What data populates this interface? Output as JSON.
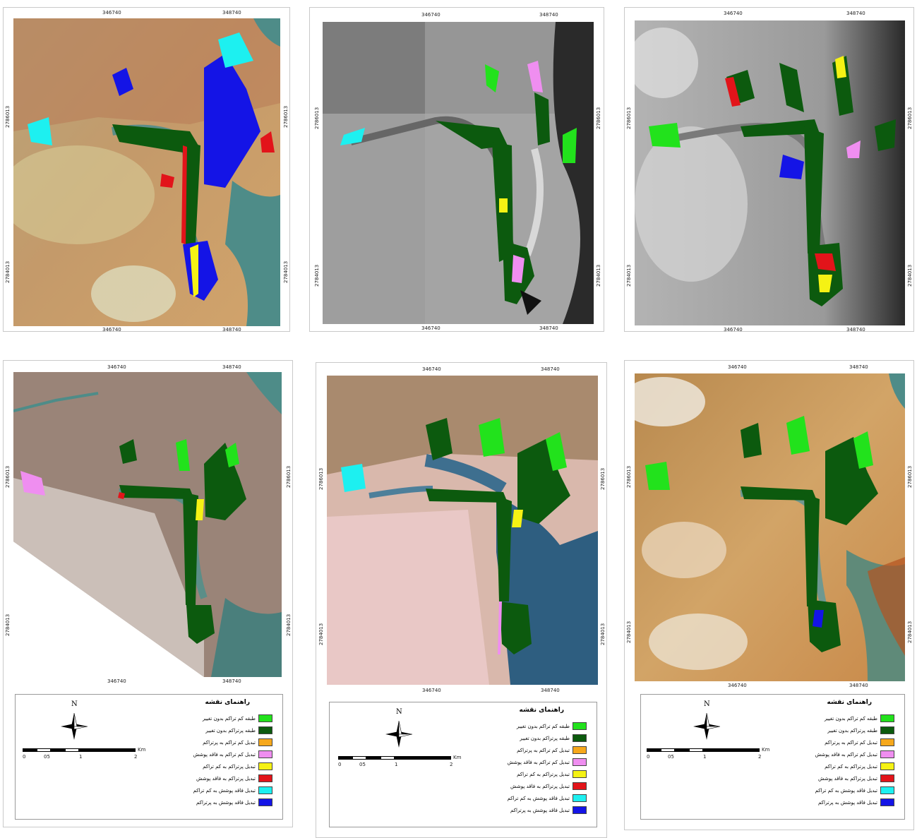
{
  "ticks": {
    "top_left": "346740",
    "top_right": "348740",
    "bottom_left": "346740",
    "bottom_right": "348740",
    "left_upper": "2786013",
    "left_lower": "2784013",
    "right_upper": "2786013",
    "right_lower": "2784013"
  },
  "legend": {
    "title": "راهنمای نقشه",
    "items": [
      {
        "label": "طبقه کم تراکم بدون تغییر",
        "color": "#22e21c"
      },
      {
        "label": "طبقه پرتراکم بدون تغییر",
        "color": "#0c5a0e"
      },
      {
        "label": "تبدیل کم تراکم به پرتراکم",
        "color": "#f6a81c"
      },
      {
        "label": "تبدیل کم تراکم به فاقد پوشش",
        "color": "#ef8ef0"
      },
      {
        "label": "تبدیل پرتراکم به کم تراکم",
        "color": "#f5f214"
      },
      {
        "label": "تبدیل پرتراکم به فاقد پوشش",
        "color": "#e2141a"
      },
      {
        "label": "تبدیل فاقد پوشش به کم تراکم",
        "color": "#1df0f0"
      },
      {
        "label": "تبدیل فاقد پوشش به پرتراکم",
        "color": "#1414e6"
      }
    ],
    "north": "N",
    "scale": {
      "labels": [
        "0",
        "05",
        "1",
        "2"
      ],
      "unit": "Km"
    }
  },
  "colors": {
    "water": "#4e8c88",
    "dense": "#0c5a0e",
    "sparse": "#22e21c"
  }
}
